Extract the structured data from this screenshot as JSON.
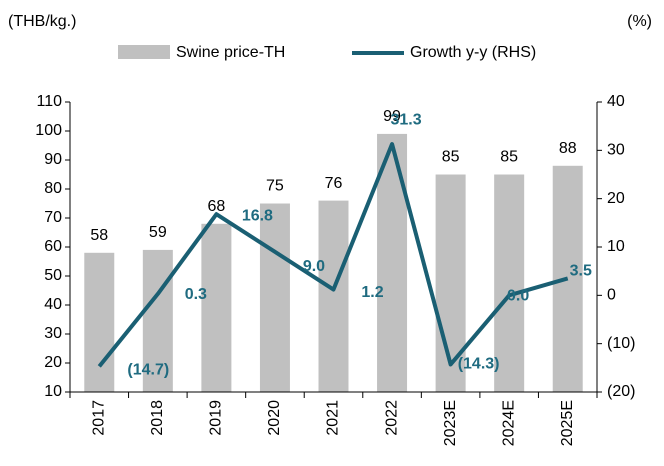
{
  "chart_data": {
    "type": "bar_line",
    "y_unit": "(THB/kg.)",
    "y2_unit": "(%)",
    "categories": [
      "2017",
      "2018",
      "2019",
      "2020",
      "2021",
      "2022",
      "2023E",
      "2024E",
      "2025E"
    ],
    "series": [
      {
        "name": "Swine price-TH",
        "type": "bar",
        "color": "#c0c0c0",
        "values": [
          58,
          59,
          68,
          75,
          76,
          99,
          85,
          85,
          88
        ]
      },
      {
        "name": "Growth y-y (RHS)",
        "type": "line",
        "axis": "y2",
        "color": "#1a5f73",
        "values": [
          -14.7,
          0.3,
          16.8,
          9.0,
          1.2,
          31.3,
          -14.3,
          0.0,
          3.5
        ],
        "value_labels": [
          "(14.7)",
          "0.3",
          "16.8",
          "9.0",
          "1.2",
          "31.3",
          "(14.3)",
          "0.0",
          "3.5"
        ]
      }
    ],
    "ylim": [
      10,
      110
    ],
    "yticks": [
      10,
      20,
      30,
      40,
      50,
      60,
      70,
      80,
      90,
      100,
      110
    ],
    "y2lim": [
      -20,
      40
    ],
    "y2ticks": [
      {
        "value": -20,
        "label": "(20)"
      },
      {
        "value": -10,
        "label": "(10)"
      },
      0,
      10,
      20,
      30,
      40
    ]
  }
}
